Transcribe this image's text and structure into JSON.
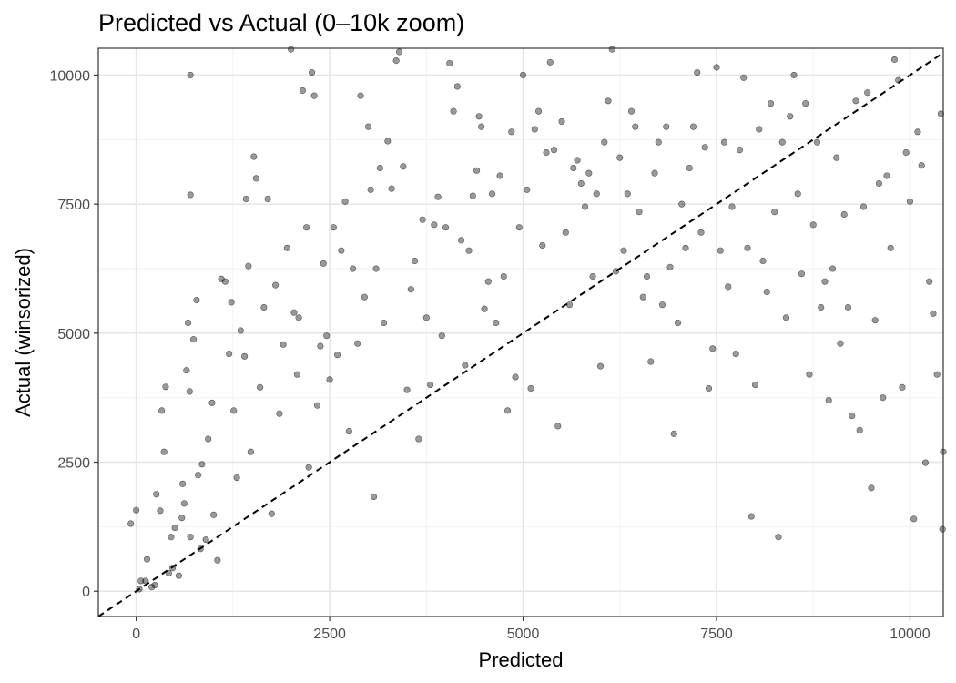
{
  "chart_data": {
    "type": "scatter",
    "title": "Predicted vs Actual (0–10k zoom)",
    "xlabel": "Predicted",
    "ylabel": "Actual (winsorized)",
    "xlim": [
      -490,
      10430
    ],
    "ylim": [
      -490,
      10520
    ],
    "x_ticks": [
      0,
      2500,
      5000,
      7500,
      10000
    ],
    "y_ticks": [
      0,
      2500,
      5000,
      7500,
      10000
    ],
    "x_tick_labels": [
      "0",
      "2500",
      "5000",
      "7500",
      "10000"
    ],
    "y_tick_labels": [
      "0",
      "2500",
      "5000",
      "7500",
      "10000"
    ],
    "grid": true,
    "reference_line": "y = x (dashed)",
    "point_color": "#000000",
    "point_alpha": 0.4,
    "series": [
      {
        "name": "",
        "points": [
          [
            -70,
            1310
          ],
          [
            0,
            1570
          ],
          [
            40,
            40
          ],
          [
            60,
            200
          ],
          [
            120,
            200
          ],
          [
            140,
            620
          ],
          [
            200,
            80
          ],
          [
            240,
            120
          ],
          [
            260,
            1880
          ],
          [
            310,
            1560
          ],
          [
            330,
            3500
          ],
          [
            360,
            2700
          ],
          [
            380,
            3960
          ],
          [
            420,
            350
          ],
          [
            450,
            1050
          ],
          [
            470,
            450
          ],
          [
            500,
            1230
          ],
          [
            550,
            300
          ],
          [
            590,
            1420
          ],
          [
            600,
            2080
          ],
          [
            620,
            1700
          ],
          [
            650,
            4280
          ],
          [
            670,
            5200
          ],
          [
            690,
            3870
          ],
          [
            700,
            10000
          ],
          [
            700,
            7680
          ],
          [
            700,
            1050
          ],
          [
            740,
            4880
          ],
          [
            780,
            5640
          ],
          [
            800,
            2250
          ],
          [
            830,
            820
          ],
          [
            850,
            2460
          ],
          [
            900,
            1000
          ],
          [
            930,
            2950
          ],
          [
            980,
            3650
          ],
          [
            1000,
            1480
          ],
          [
            1050,
            600
          ],
          [
            1100,
            6050
          ],
          [
            1150,
            6000
          ],
          [
            1200,
            4600
          ],
          [
            1230,
            5600
          ],
          [
            1260,
            3500
          ],
          [
            1300,
            2200
          ],
          [
            1350,
            5050
          ],
          [
            1400,
            4550
          ],
          [
            1420,
            7600
          ],
          [
            1450,
            6300
          ],
          [
            1480,
            2700
          ],
          [
            1520,
            8420
          ],
          [
            1550,
            8000
          ],
          [
            1600,
            3950
          ],
          [
            1650,
            5500
          ],
          [
            1700,
            7600
          ],
          [
            1750,
            1500
          ],
          [
            1800,
            5930
          ],
          [
            1850,
            3440
          ],
          [
            1900,
            4780
          ],
          [
            1950,
            6650
          ],
          [
            2000,
            10500
          ],
          [
            2040,
            5400
          ],
          [
            2080,
            4200
          ],
          [
            2100,
            5300
          ],
          [
            2150,
            9700
          ],
          [
            2200,
            7050
          ],
          [
            2230,
            2400
          ],
          [
            2270,
            10050
          ],
          [
            2300,
            9600
          ],
          [
            2340,
            3600
          ],
          [
            2380,
            4750
          ],
          [
            2420,
            6350
          ],
          [
            2460,
            4950
          ],
          [
            2500,
            4100
          ],
          [
            2550,
            7050
          ],
          [
            2600,
            4580
          ],
          [
            2650,
            6600
          ],
          [
            2700,
            7550
          ],
          [
            2750,
            3100
          ],
          [
            2800,
            6250
          ],
          [
            2860,
            4800
          ],
          [
            2900,
            9600
          ],
          [
            2950,
            5700
          ],
          [
            3000,
            9000
          ],
          [
            3030,
            7780
          ],
          [
            3070,
            1830
          ],
          [
            3100,
            6250
          ],
          [
            3150,
            8200
          ],
          [
            3200,
            5200
          ],
          [
            3250,
            8720
          ],
          [
            3300,
            7800
          ],
          [
            3360,
            10280
          ],
          [
            3400,
            10450
          ],
          [
            3450,
            8230
          ],
          [
            3500,
            3900
          ],
          [
            3550,
            5850
          ],
          [
            3600,
            6400
          ],
          [
            3650,
            2950
          ],
          [
            3700,
            7200
          ],
          [
            3750,
            5300
          ],
          [
            3800,
            4000
          ],
          [
            3850,
            7100
          ],
          [
            3900,
            7640
          ],
          [
            3950,
            4950
          ],
          [
            4000,
            7050
          ],
          [
            4050,
            10230
          ],
          [
            4100,
            9300
          ],
          [
            4150,
            9780
          ],
          [
            4200,
            6800
          ],
          [
            4250,
            4380
          ],
          [
            4300,
            6600
          ],
          [
            4350,
            7660
          ],
          [
            4400,
            8150
          ],
          [
            4430,
            9200
          ],
          [
            4460,
            9000
          ],
          [
            4500,
            5470
          ],
          [
            4550,
            6000
          ],
          [
            4600,
            7700
          ],
          [
            4650,
            5200
          ],
          [
            4700,
            8050
          ],
          [
            4750,
            6100
          ],
          [
            4800,
            3500
          ],
          [
            4850,
            8900
          ],
          [
            4900,
            4150
          ],
          [
            4950,
            7050
          ],
          [
            5000,
            10000
          ],
          [
            5050,
            7780
          ],
          [
            5100,
            3930
          ],
          [
            5150,
            8950
          ],
          [
            5200,
            9300
          ],
          [
            5250,
            6700
          ],
          [
            5300,
            8500
          ],
          [
            5350,
            10250
          ],
          [
            5400,
            8550
          ],
          [
            5450,
            3200
          ],
          [
            5500,
            9100
          ],
          [
            5550,
            6950
          ],
          [
            5600,
            5550
          ],
          [
            5650,
            8200
          ],
          [
            5700,
            8350
          ],
          [
            5750,
            7900
          ],
          [
            5800,
            7450
          ],
          [
            5850,
            8100
          ],
          [
            5900,
            6100
          ],
          [
            5950,
            7700
          ],
          [
            6000,
            4360
          ],
          [
            6050,
            8700
          ],
          [
            6100,
            9500
          ],
          [
            6150,
            10500
          ],
          [
            6200,
            6200
          ],
          [
            6250,
            8400
          ],
          [
            6300,
            6600
          ],
          [
            6350,
            7700
          ],
          [
            6400,
            9300
          ],
          [
            6450,
            9000
          ],
          [
            6500,
            7350
          ],
          [
            6550,
            5700
          ],
          [
            6600,
            6100
          ],
          [
            6650,
            4450
          ],
          [
            6700,
            8100
          ],
          [
            6750,
            8700
          ],
          [
            6800,
            5550
          ],
          [
            6850,
            9000
          ],
          [
            6900,
            6280
          ],
          [
            6950,
            3050
          ],
          [
            7000,
            5200
          ],
          [
            7050,
            7500
          ],
          [
            7100,
            6650
          ],
          [
            7150,
            8200
          ],
          [
            7200,
            9000
          ],
          [
            7250,
            10050
          ],
          [
            7300,
            6950
          ],
          [
            7350,
            8600
          ],
          [
            7400,
            3930
          ],
          [
            7450,
            4700
          ],
          [
            7500,
            10150
          ],
          [
            7550,
            6600
          ],
          [
            7600,
            8700
          ],
          [
            7650,
            5900
          ],
          [
            7700,
            7450
          ],
          [
            7750,
            4600
          ],
          [
            7800,
            8550
          ],
          [
            7850,
            9950
          ],
          [
            7900,
            6650
          ],
          [
            7950,
            1450
          ],
          [
            8000,
            4000
          ],
          [
            8050,
            8950
          ],
          [
            8100,
            6400
          ],
          [
            8150,
            5800
          ],
          [
            8200,
            9450
          ],
          [
            8250,
            7350
          ],
          [
            8300,
            1050
          ],
          [
            8350,
            8700
          ],
          [
            8400,
            5300
          ],
          [
            8450,
            9200
          ],
          [
            8500,
            10000
          ],
          [
            8550,
            7700
          ],
          [
            8600,
            6150
          ],
          [
            8650,
            9450
          ],
          [
            8700,
            4200
          ],
          [
            8750,
            7100
          ],
          [
            8800,
            8700
          ],
          [
            8850,
            5500
          ],
          [
            8900,
            6000
          ],
          [
            8950,
            3700
          ],
          [
            9000,
            6250
          ],
          [
            9050,
            8400
          ],
          [
            9100,
            4800
          ],
          [
            9150,
            7300
          ],
          [
            9200,
            5500
          ],
          [
            9250,
            3400
          ],
          [
            9300,
            9500
          ],
          [
            9350,
            3120
          ],
          [
            9400,
            7450
          ],
          [
            9450,
            9660
          ],
          [
            9500,
            2000
          ],
          [
            9550,
            5250
          ],
          [
            9600,
            7900
          ],
          [
            9650,
            3750
          ],
          [
            9700,
            8050
          ],
          [
            9750,
            6650
          ],
          [
            9800,
            10300
          ],
          [
            9850,
            9900
          ],
          [
            9900,
            3950
          ],
          [
            9950,
            8500
          ],
          [
            10000,
            7550
          ],
          [
            10050,
            1400
          ],
          [
            10100,
            8900
          ],
          [
            10150,
            8250
          ],
          [
            10200,
            2490
          ],
          [
            10250,
            6000
          ],
          [
            10300,
            5380
          ],
          [
            10350,
            4200
          ],
          [
            10400,
            9250
          ],
          [
            10420,
            1200
          ],
          [
            10430,
            2700
          ]
        ]
      }
    ]
  }
}
